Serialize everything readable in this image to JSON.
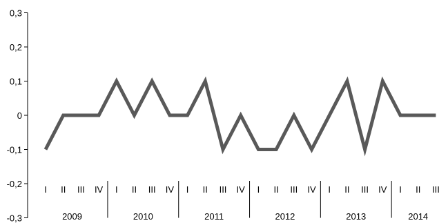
{
  "chart_data": {
    "type": "line",
    "title": "",
    "xlabel": "",
    "ylabel": "",
    "ylim": [
      -0.3,
      0.3
    ],
    "yticks": [
      "0,3",
      "0,2",
      "0,1",
      "0",
      "-0,1",
      "-0,2",
      "-0,3"
    ],
    "ytick_values": [
      0.3,
      0.2,
      0.1,
      0,
      -0.1,
      -0.2,
      -0.3
    ],
    "grid": false,
    "line_color": "#595959",
    "years": [
      {
        "label": "2009",
        "quarters": [
          "I",
          "II",
          "III",
          "IV"
        ]
      },
      {
        "label": "2010",
        "quarters": [
          "I",
          "II",
          "III",
          "IV"
        ]
      },
      {
        "label": "2011",
        "quarters": [
          "I",
          "II",
          "III",
          "IV"
        ]
      },
      {
        "label": "2012",
        "quarters": [
          "I",
          "II",
          "III",
          "IV"
        ]
      },
      {
        "label": "2013",
        "quarters": [
          "I",
          "II",
          "III",
          "IV"
        ]
      },
      {
        "label": "2014",
        "quarters": [
          "I",
          "II",
          "III"
        ]
      }
    ],
    "series": [
      {
        "values": [
          -0.1,
          0,
          0,
          0,
          0.1,
          0,
          0.1,
          0,
          0,
          0.1,
          -0.1,
          0,
          -0.1,
          -0.1,
          0,
          -0.1,
          0,
          0.1,
          -0.1,
          0.1,
          0,
          0,
          0
        ]
      }
    ]
  }
}
